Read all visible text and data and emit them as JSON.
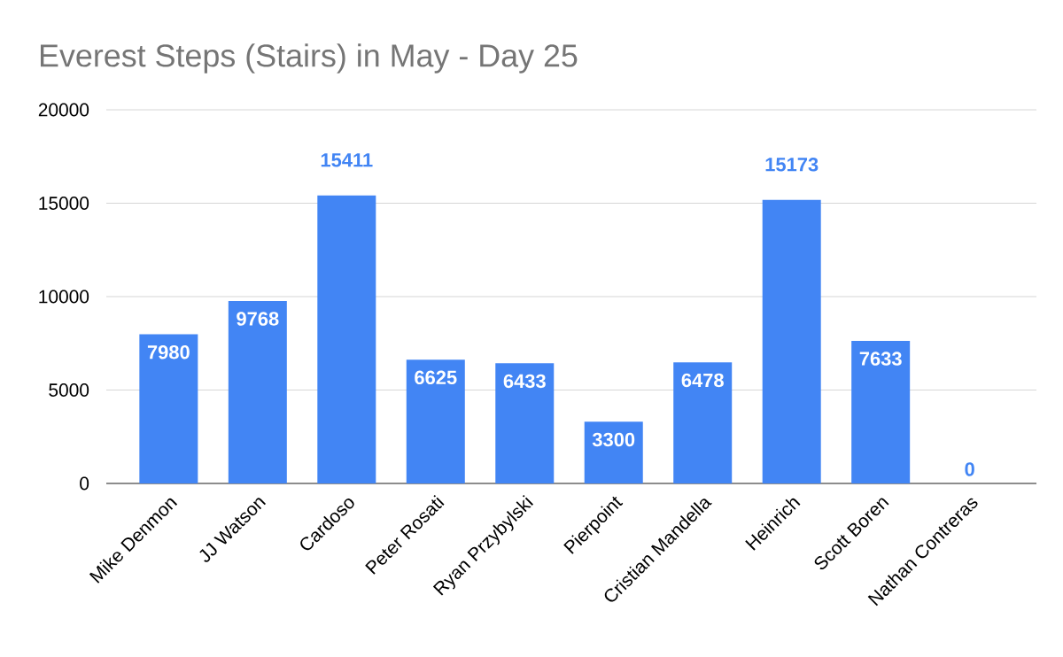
{
  "chart_data": {
    "type": "bar",
    "title": "Everest Steps (Stairs) in May - Day 25",
    "categories": [
      "Mike Denmon",
      "JJ Watson",
      "Cardoso",
      "Peter Rosati",
      "Ryan Przybylski",
      "Pierpoint",
      "Cristian Mandella",
      "Heinrich",
      "Scott Boren",
      "Nathan Contreras"
    ],
    "values": [
      7980,
      9768,
      15411,
      6625,
      6433,
      3300,
      6478,
      15173,
      7633,
      0
    ],
    "color": "#4285f4",
    "ylim": [
      0,
      20000
    ],
    "yticks": [
      0,
      5000,
      10000,
      15000,
      20000
    ],
    "grid": "y",
    "data_labels": true
  }
}
